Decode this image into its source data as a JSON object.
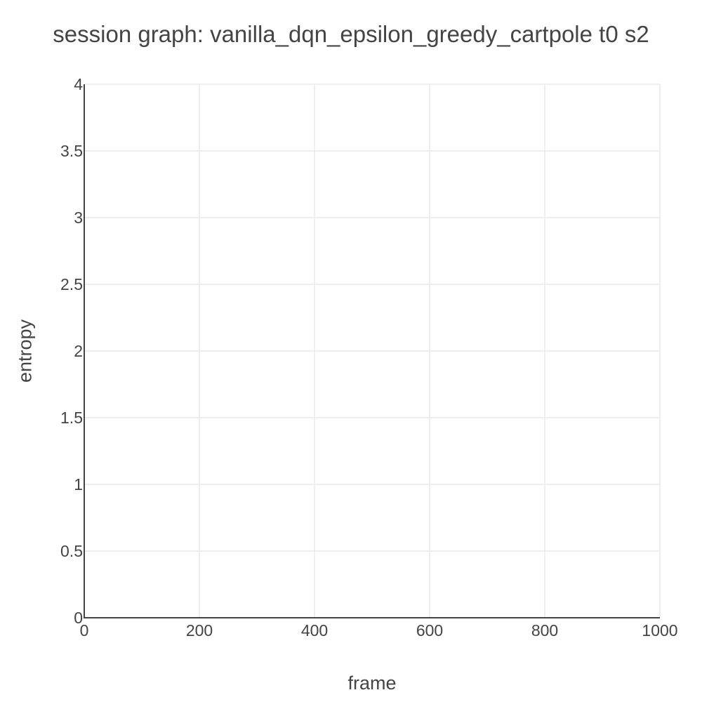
{
  "chart_data": {
    "type": "line",
    "title": "session graph: vanilla_dqn_epsilon_greedy_cartpole t0 s2",
    "xlabel": "frame",
    "ylabel": "entropy",
    "xlim": [
      0,
      1000
    ],
    "ylim": [
      0,
      4
    ],
    "x_ticks": [
      0,
      200,
      400,
      600,
      800,
      1000
    ],
    "x_tick_labels": [
      "0",
      "200",
      "400",
      "600",
      "800",
      "1000"
    ],
    "y_ticks": [
      0,
      0.5,
      1,
      1.5,
      2,
      2.5,
      3,
      3.5,
      4
    ],
    "y_tick_labels": [
      "0",
      "0.5",
      "1",
      "1.5",
      "2",
      "2.5",
      "3",
      "3.5",
      "4"
    ],
    "grid": true,
    "legend": "none",
    "series": [
      {
        "x": [],
        "y": []
      }
    ],
    "colors": {
      "grid": "#eeeeee",
      "axis": "#444444",
      "text": "#444444"
    }
  }
}
